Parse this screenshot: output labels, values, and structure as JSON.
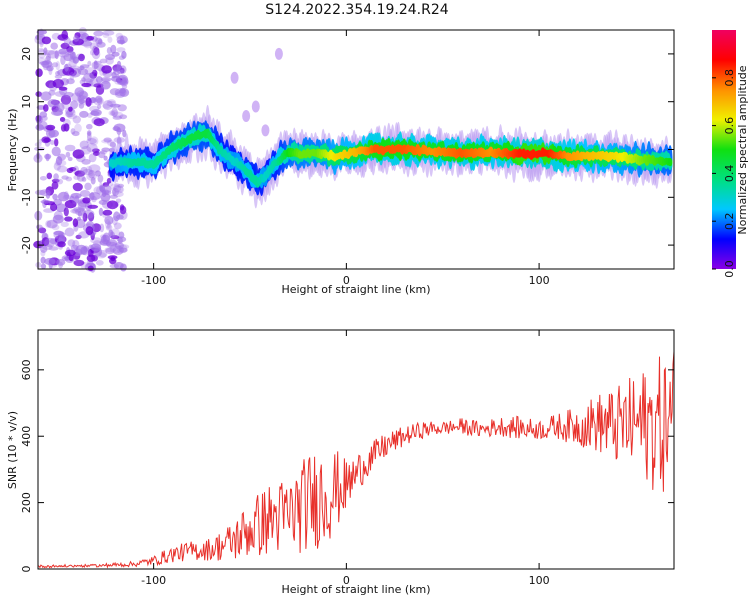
{
  "figure_title": "S124.2022.354.19.24.R24",
  "chart_data": [
    {
      "type": "heatmap",
      "xlabel": "Height of straight line (km)",
      "ylabel": "Frequency (Hz)",
      "xlim": [
        -160,
        170
      ],
      "ylim": [
        -25,
        25
      ],
      "x_ticks": [
        -100,
        0,
        100
      ],
      "y_ticks": [
        -20,
        -10,
        0,
        10,
        20
      ],
      "colorbar": {
        "label": "Normalized spectral amplitude",
        "range": [
          0,
          1
        ],
        "ticks": [
          0.0,
          0.2,
          0.4,
          0.6,
          0.8
        ],
        "colormap": [
          "#8a00e6",
          "#0000ff",
          "#00c8ff",
          "#00e080",
          "#10e010",
          "#f0f000",
          "#ff9000",
          "#ff0000",
          "#f00060"
        ]
      },
      "noise_region_x": [
        -160,
        -115
      ],
      "ridge": {
        "x": [
          -122,
          -110,
          -100,
          -90,
          -80,
          -72,
          -66,
          -58,
          -52,
          -46,
          -42,
          -36,
          -30,
          -24,
          -15,
          -5,
          5,
          15,
          30,
          45,
          60,
          75,
          90,
          105,
          115,
          125,
          140,
          155,
          168
        ],
        "freq": [
          -2.8,
          -2.6,
          -3.0,
          0.5,
          2.5,
          3.5,
          0.0,
          -2.5,
          -4.5,
          -7.0,
          -5.5,
          -2.5,
          -0.5,
          -1.0,
          -0.8,
          -1.5,
          -0.5,
          0.0,
          0.0,
          -0.3,
          -0.8,
          -0.5,
          -1.0,
          -0.8,
          -1.5,
          -1.3,
          -1.5,
          -2.2,
          -2.5
        ],
        "amplitude": [
          0.3,
          0.35,
          0.35,
          0.4,
          0.45,
          0.45,
          0.35,
          0.3,
          0.35,
          0.35,
          0.3,
          0.35,
          0.5,
          0.55,
          0.55,
          0.65,
          0.7,
          0.8,
          0.8,
          0.75,
          0.8,
          0.75,
          0.85,
          0.85,
          0.75,
          0.7,
          0.65,
          0.55,
          0.5
        ]
      }
    },
    {
      "type": "line",
      "xlabel": "Height of straight line (km)",
      "ylabel": "SNR (10 * v/v)",
      "xlim": [
        -160,
        170
      ],
      "ylim": [
        0,
        720
      ],
      "x_ticks": [
        -100,
        0,
        100
      ],
      "y_ticks": [
        0,
        200,
        400,
        600
      ],
      "color": "#e8302a",
      "envelope": {
        "x": [
          -160,
          -130,
          -110,
          -100,
          -90,
          -80,
          -70,
          -60,
          -50,
          -40,
          -30,
          -20,
          -10,
          0,
          10,
          20,
          30,
          40,
          50,
          60,
          70,
          80,
          90,
          100,
          110,
          120,
          130,
          140,
          150,
          160,
          170
        ],
        "mean": [
          8,
          10,
          15,
          25,
          45,
          55,
          60,
          80,
          120,
          150,
          160,
          200,
          230,
          250,
          320,
          370,
          400,
          420,
          425,
          430,
          420,
          430,
          425,
          420,
          430,
          430,
          440,
          430,
          440,
          430,
          450
        ],
        "spread": [
          4,
          5,
          8,
          15,
          25,
          30,
          35,
          60,
          90,
          110,
          120,
          150,
          160,
          80,
          50,
          40,
          30,
          25,
          20,
          25,
          25,
          30,
          35,
          30,
          40,
          60,
          90,
          120,
          150,
          200,
          230
        ]
      }
    }
  ]
}
